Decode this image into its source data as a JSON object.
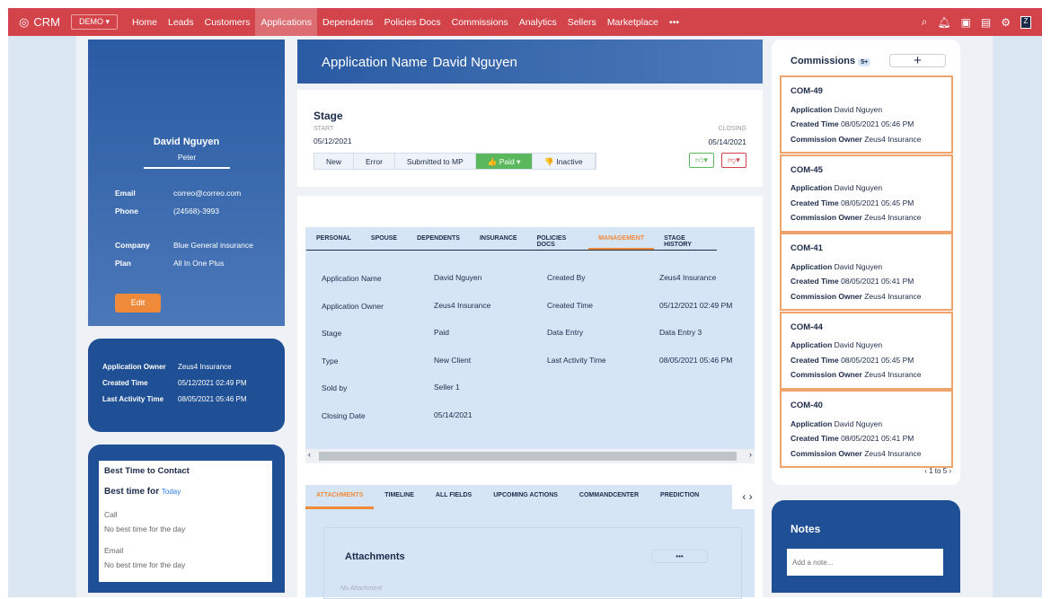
{
  "topbar": {
    "app": "CRM",
    "demo": "DEMO ▾",
    "nav": [
      "Home",
      "Leads",
      "Customers",
      "Applications",
      "Dependents",
      "Policies Docs",
      "Commissions",
      "Analytics",
      "Sellers",
      "Marketplace",
      "•••"
    ],
    "active": "Applications",
    "avatar": "Z"
  },
  "profile": {
    "name": "David Nguyen",
    "sub": "Peter",
    "fields": [
      [
        "Email",
        "correo@correo.com"
      ],
      [
        "Phone",
        "(24568)-3993"
      ],
      [
        "Company",
        "Blue General insurance"
      ],
      [
        "Plan",
        "All In One Plus"
      ]
    ],
    "edit": "Edit"
  },
  "info": [
    [
      "Application Owner",
      "Zeus4 Insurance"
    ],
    [
      "Created Time",
      "05/12/2021 02:49 PM"
    ],
    [
      "Last Activity Time",
      "08/05/2021 05:46 PM"
    ]
  ],
  "best": {
    "title": "Best Time to Contact",
    "for": "Best time for",
    "today": "Today",
    "call": "Call",
    "call_val": "No best time for the day",
    "email": "Email",
    "email_val": "No best time for the day"
  },
  "header": {
    "label": "Application Name",
    "value": "David Nguyen"
  },
  "stage": {
    "title": "Stage",
    "start_label": "START",
    "start": "05/12/2021",
    "closing_label": "CLOSING",
    "closing": "05/14/2021",
    "steps": [
      "New",
      "Error",
      "Submitted to MP",
      "👍 Paid ▾",
      "👎 Inactive"
    ],
    "current": "Paid"
  },
  "tabs": [
    "PERSONAL",
    "SPOUSE",
    "DEPENDENTS",
    "INSURANCE",
    "POLICIES DOCS",
    "MANAGEMENT",
    "STAGE HISTORY"
  ],
  "active_tab": "MANAGEMENT",
  "management": {
    "left": [
      [
        "Application Name",
        "David Nguyen"
      ],
      [
        "Application Owner",
        "Zeus4 Insurance"
      ],
      [
        "Stage",
        "Paid"
      ],
      [
        "Type",
        "New Client"
      ],
      [
        "Sold by",
        "Seller 1"
      ],
      [
        "Closing Date",
        "05/14/2021"
      ]
    ],
    "right": [
      [
        "Created By",
        "Zeus4 Insurance"
      ],
      [
        "Created Time",
        "05/12/2021 02:49 PM"
      ],
      [
        "Data Entry",
        "Data Entry 3"
      ],
      [
        "Last Activity Time",
        "08/05/2021 05:46 PM"
      ]
    ]
  },
  "tabs2": [
    "ATTACHMENTS",
    "TIMELINE",
    "ALL FIELDS",
    "UPCOMING ACTIONS",
    "COMMANDCENTER",
    "PREDICTION"
  ],
  "attachments": {
    "title": "Attachments",
    "more": "•••",
    "empty": "No Attachment"
  },
  "commissions": {
    "title": "Commissions",
    "badge": "5+",
    "add": "+",
    "pager": "1 to 5",
    "items": [
      {
        "id": "COM-49",
        "app": "David Nguyen",
        "time": "08/05/2021 05:46 PM",
        "owner": "Zeus4 Insurance"
      },
      {
        "id": "COM-45",
        "app": "David Nguyen",
        "time": "08/05/2021 05:45 PM",
        "owner": "Zeus4 Insurance"
      },
      {
        "id": "COM-41",
        "app": "David Nguyen",
        "time": "08/05/2021 05:41 PM",
        "owner": "Zeus4 Insurance"
      },
      {
        "id": "COM-44",
        "app": "David Nguyen",
        "time": "08/05/2021 05:45 PM",
        "owner": "Zeus4 Insurance"
      },
      {
        "id": "COM-40",
        "app": "David Nguyen",
        "time": "08/05/2021 05:41 PM",
        "owner": "Zeus4 Insurance"
      }
    ],
    "labels": {
      "app": "Application",
      "time": "Created Time",
      "owner": "Commission Owner"
    }
  },
  "notes": {
    "title": "Notes",
    "placeholder": "Add a note..."
  }
}
